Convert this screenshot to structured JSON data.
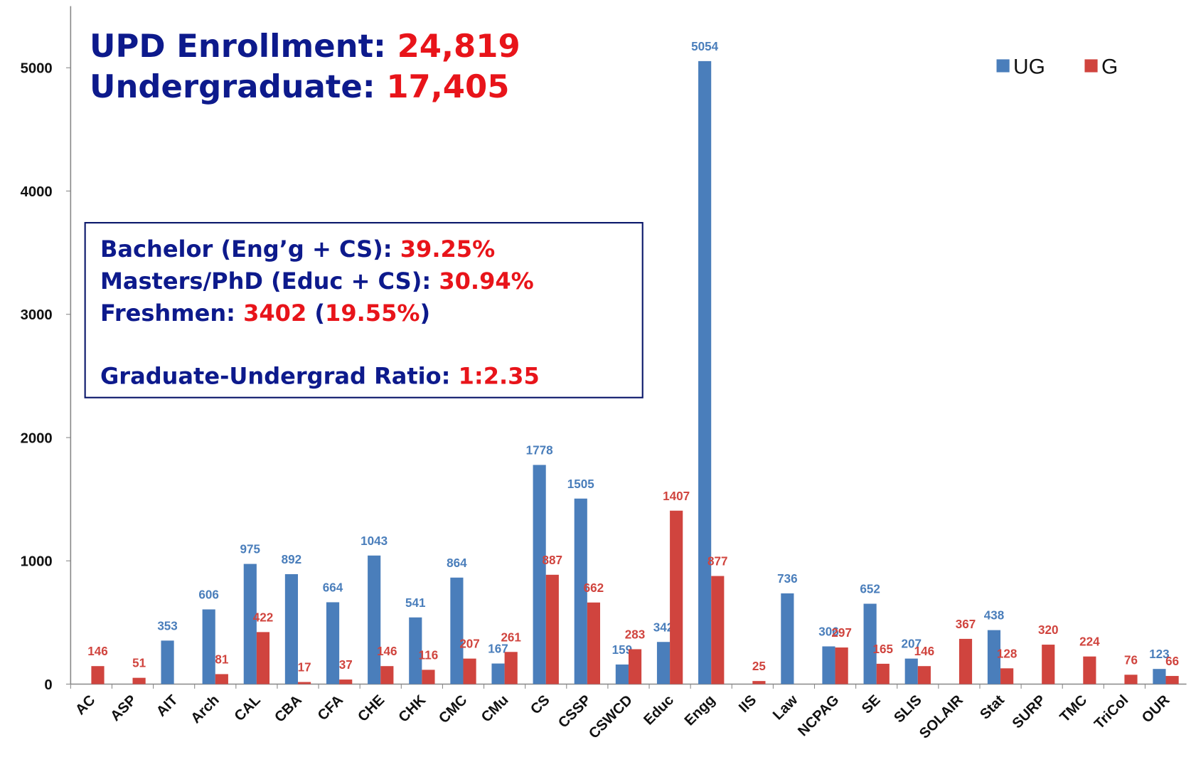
{
  "chart_data": {
    "type": "bar",
    "categories": [
      "AC",
      "ASP",
      "AIT",
      "Arch",
      "CAL",
      "CBA",
      "CFA",
      "CHE",
      "CHK",
      "CMC",
      "CMu",
      "CS",
      "CSSP",
      "CSWCD",
      "Educ",
      "Engg",
      "IIS",
      "Law",
      "NCPAG",
      "SE",
      "SLIS",
      "SOLAIR",
      "Stat",
      "SURP",
      "TMC",
      "TriCol",
      "OUR"
    ],
    "series": [
      {
        "name": "UG",
        "color": "#4a7ebb",
        "values": [
          null,
          null,
          353,
          606,
          975,
          892,
          664,
          1043,
          541,
          864,
          167,
          1778,
          1505,
          159,
          342,
          5054,
          null,
          736,
          306,
          652,
          207,
          null,
          438,
          null,
          null,
          null,
          123
        ]
      },
      {
        "name": "G",
        "color": "#d0443e",
        "values": [
          146,
          51,
          null,
          81,
          422,
          17,
          37,
          146,
          116,
          207,
          261,
          887,
          662,
          283,
          1407,
          877,
          25,
          null,
          297,
          165,
          146,
          367,
          128,
          320,
          224,
          76,
          66
        ]
      }
    ],
    "ylim": [
      0,
      5500
    ],
    "yticks": [
      0,
      1000,
      2000,
      3000,
      4000,
      5000
    ],
    "legend": "top-right",
    "text_color": "#0d1a8c",
    "highlight_color": "#e8141a",
    "headline": [
      [
        "UPD Enrollment: ",
        "24,819"
      ],
      [
        "Undergraduate: ",
        "17,405"
      ]
    ],
    "box_lines": [
      [
        "Bachelor (Eng’g + CS): ",
        "39.25%"
      ],
      [
        "Masters/PhD (Educ + CS): ",
        "30.94%"
      ],
      [
        "Freshmen: ",
        "3402",
        " (",
        "19.55%",
        ")"
      ],
      [
        "Graduate-Undergrad Ratio: ",
        "1:2.35"
      ]
    ]
  }
}
